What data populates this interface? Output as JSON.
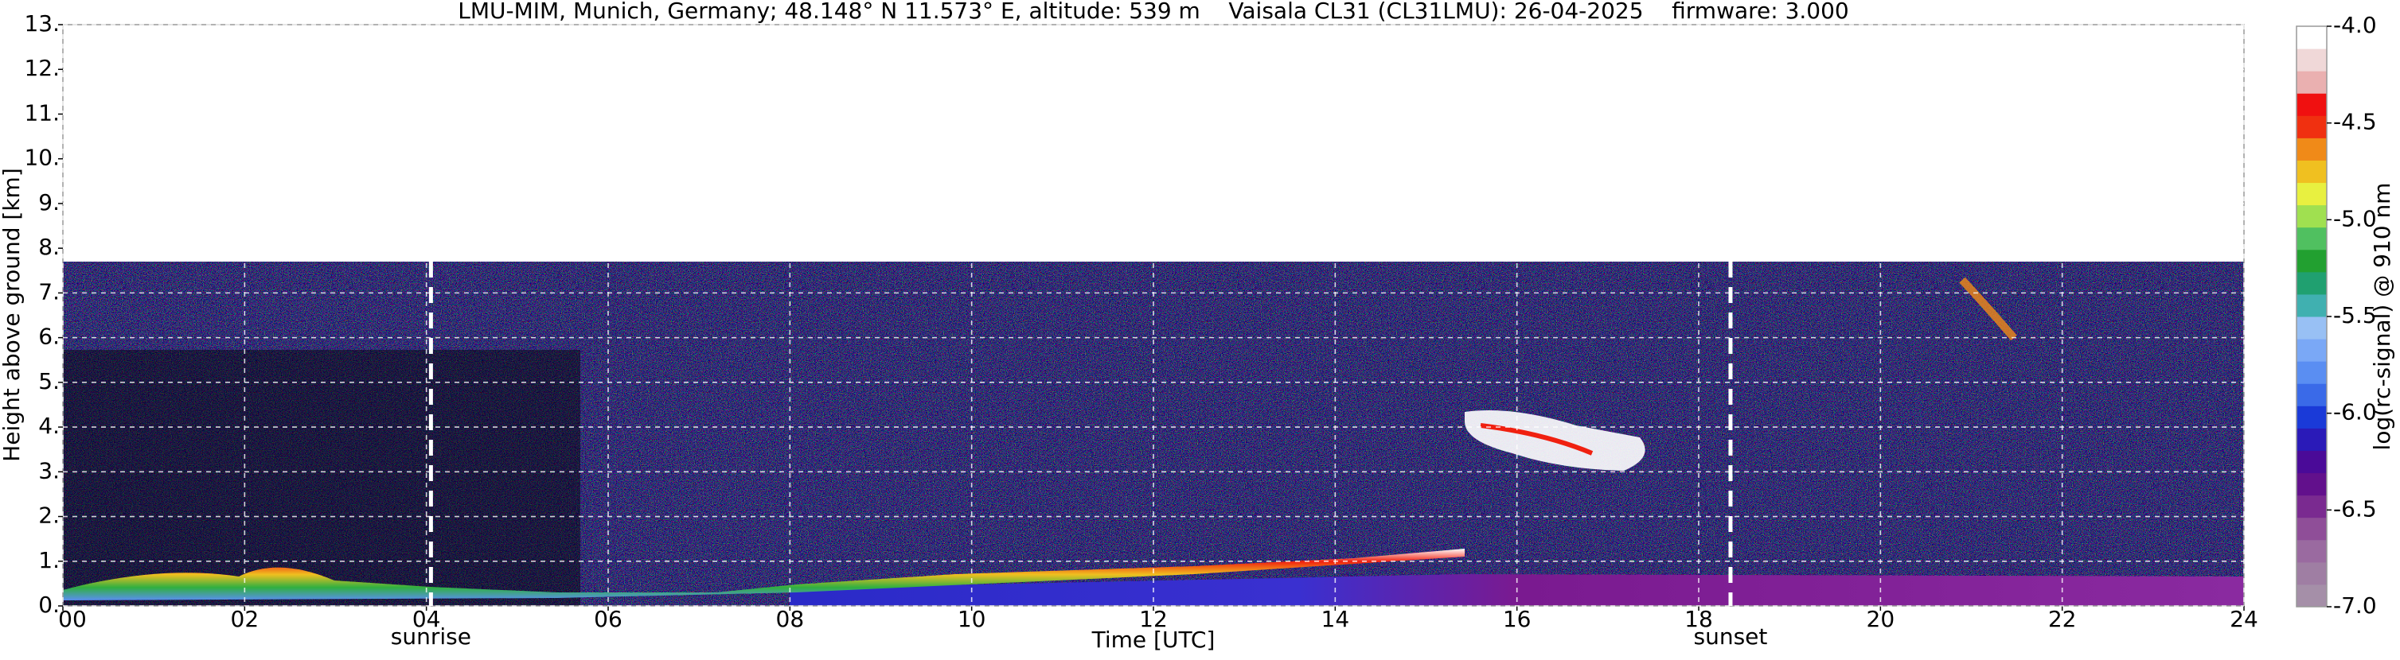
{
  "chart_data": {
    "type": "heatmap",
    "title": "LMU-MIM, Munich, Germany; 48.148° N 11.573° E, altitude: 539 m    Vaisala CL31 (CL31LMU): 26-04-2025    firmware: 3.000",
    "xlabel": "Time [UTC]",
    "ylabel": "Height above ground [km]",
    "xlim": [
      0,
      24
    ],
    "xticks": [
      {
        "value": 0,
        "label": "00"
      },
      {
        "value": 2,
        "label": "02"
      },
      {
        "value": 4,
        "label": "04"
      },
      {
        "value": 6,
        "label": "06"
      },
      {
        "value": 8,
        "label": "08"
      },
      {
        "value": 10,
        "label": "10"
      },
      {
        "value": 12,
        "label": "12"
      },
      {
        "value": 14,
        "label": "14"
      },
      {
        "value": 16,
        "label": "16"
      },
      {
        "value": 18,
        "label": "18"
      },
      {
        "value": 20,
        "label": "20"
      },
      {
        "value": 22,
        "label": "22"
      },
      {
        "value": 24,
        "label": "24"
      }
    ],
    "ylim": [
      0,
      13
    ],
    "yticks": [
      {
        "value": 0,
        "label": "0."
      },
      {
        "value": 1,
        "label": "1."
      },
      {
        "value": 2,
        "label": "2."
      },
      {
        "value": 3,
        "label": "3."
      },
      {
        "value": 4,
        "label": "4."
      },
      {
        "value": 5,
        "label": "5."
      },
      {
        "value": 6,
        "label": "6."
      },
      {
        "value": 7,
        "label": "7."
      },
      {
        "value": 8,
        "label": "8."
      },
      {
        "value": 9,
        "label": "9."
      },
      {
        "value": 10,
        "label": "10."
      },
      {
        "value": 11,
        "label": "11."
      },
      {
        "value": 12,
        "label": "12."
      },
      {
        "value": 13,
        "label": "13."
      }
    ],
    "grid": true,
    "annotations": [
      {
        "x": 4.05,
        "label": "sunrise"
      },
      {
        "x": 18.35,
        "label": "sunset"
      }
    ],
    "colorbar": {
      "label": "log(rc-signal) @ 910 nm",
      "lim": [
        -7,
        -4
      ],
      "ticks": [
        {
          "value": -7,
          "label": "-7.0"
        },
        {
          "value": -6.5,
          "label": "-6.5"
        },
        {
          "value": -6,
          "label": "-6.0"
        },
        {
          "value": -5.5,
          "label": "-5.5"
        },
        {
          "value": -5,
          "label": "-5.0"
        },
        {
          "value": -4.5,
          "label": "-4.5"
        },
        {
          "value": -4,
          "label": "-4.0"
        }
      ],
      "colors": [
        "#a58fa8",
        "#9f7ea3",
        "#9a6aa0",
        "#8f4e98",
        "#7a2a90",
        "#62108c",
        "#4a0a98",
        "#2a1ab8",
        "#1a3ad8",
        "#3a6ae8",
        "#5a8ef2",
        "#7aa8f6",
        "#98c0f4",
        "#40b0b0",
        "#20a070",
        "#22a030",
        "#50c060",
        "#a0e050",
        "#e8f040",
        "#f0c020",
        "#f08a18",
        "#f03010",
        "#f01010",
        "#eab0b0",
        "#f0d8d8",
        "#ffffff"
      ]
    }
  }
}
